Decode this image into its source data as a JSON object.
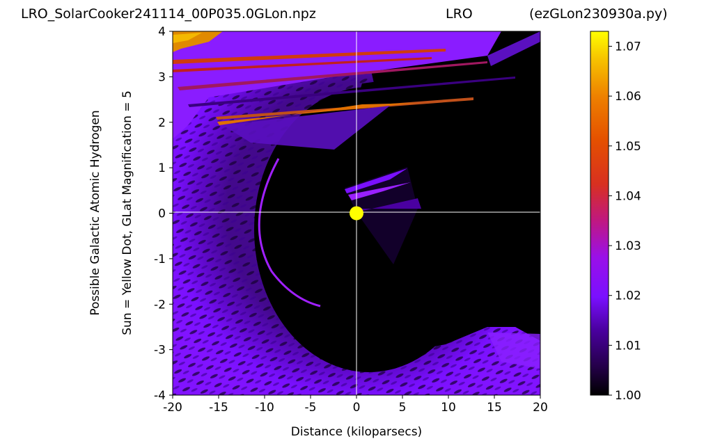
{
  "chart_data": {
    "type": "heatmap",
    "title_left": "LRO_SolarCooker241114_00P035.0GLon.npz",
    "title_center": "LRO",
    "title_right": "(ezGLon230930a.py)",
    "xlabel": "Distance (kiloparsecs)",
    "ylabel_line1": "Possible Galactic Atomic Hydrogen",
    "ylabel_line2": "Sun = Yellow Dot, GLat Magnification = 5",
    "xlim": [
      -20,
      20
    ],
    "ylim": [
      -4,
      4
    ],
    "xticks": [
      "-20",
      "-15",
      "-10",
      "-5",
      "0",
      "5",
      "10",
      "15",
      "20"
    ],
    "yticks": [
      "-4",
      "-3",
      "-2",
      "-1",
      "0",
      "1",
      "2",
      "3",
      "4"
    ],
    "sun": {
      "x": 0,
      "y": 0,
      "color": "#ffff00"
    },
    "colorbar": {
      "colormap": "gnuplot",
      "range": [
        1.0,
        1.073
      ],
      "ticks": [
        "1.00",
        "1.01",
        "1.02",
        "1.03",
        "1.04",
        "1.05",
        "1.06",
        "1.07"
      ]
    },
    "crosshair_color": "#ffffff",
    "grid": false
  }
}
